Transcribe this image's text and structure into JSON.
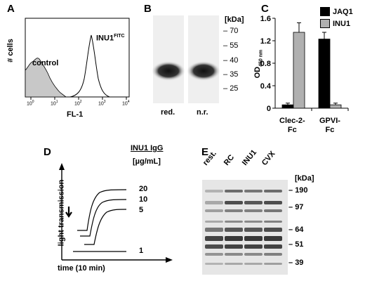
{
  "panels": {
    "a": {
      "letter": "A",
      "ylabel": "# cells",
      "xlabel": "FL-1",
      "x_ticks": [
        "10",
        "10",
        "10",
        "10",
        "10"
      ],
      "x_tick_exponents": [
        "0",
        "1",
        "2",
        "3",
        "4"
      ],
      "control_label": "control",
      "inu1_label": "INU1",
      "inu1_sup": "FITC"
    },
    "b": {
      "letter": "B",
      "unit": "[kDa]",
      "markers": [
        "70",
        "55",
        "40",
        "35",
        "25"
      ],
      "lane_labels": [
        "red.",
        "n.r."
      ]
    },
    "c": {
      "letter": "C",
      "ylabel": "OD",
      "ylabel_sub": "450 nm",
      "legend": [
        "JAQ1",
        "INU1"
      ],
      "colors": {
        "JAQ1": "#000000",
        "INU1": "#b0b0b0"
      }
    },
    "d": {
      "letter": "D",
      "title": "INU1 IgG",
      "unit": "[µg/mL]",
      "ylabel": "light transmission",
      "xlabel": "time (10 min)",
      "trace_labels": [
        "20",
        "10",
        "5",
        "1"
      ]
    },
    "e": {
      "letter": "E",
      "lane_labels": [
        "rest.",
        "RC",
        "INU1",
        "CVX"
      ],
      "unit": "[kDa]",
      "markers": [
        "190",
        "97",
        "64",
        "51",
        "39"
      ]
    }
  },
  "chart_data": {
    "type": "bar",
    "categories": [
      "Clec-2-Fc",
      "GPVI-Fc"
    ],
    "category_labels": [
      [
        "Clec-2-",
        "Fc"
      ],
      [
        "GPVI-",
        "Fc"
      ]
    ],
    "series": [
      {
        "name": "JAQ1",
        "values": [
          0.06,
          1.23
        ],
        "errors": [
          0.03,
          0.12
        ]
      },
      {
        "name": "INU1",
        "values": [
          1.35,
          0.06
        ],
        "errors": [
          0.17,
          0.03
        ]
      }
    ],
    "ylabel": "OD 450 nm",
    "ylim": [
      0,
      1.6
    ],
    "yticks": [
      "0",
      "0.4",
      "0.8",
      "1.2",
      "1.6"
    ],
    "legend_position": "top-right",
    "grid": false
  }
}
